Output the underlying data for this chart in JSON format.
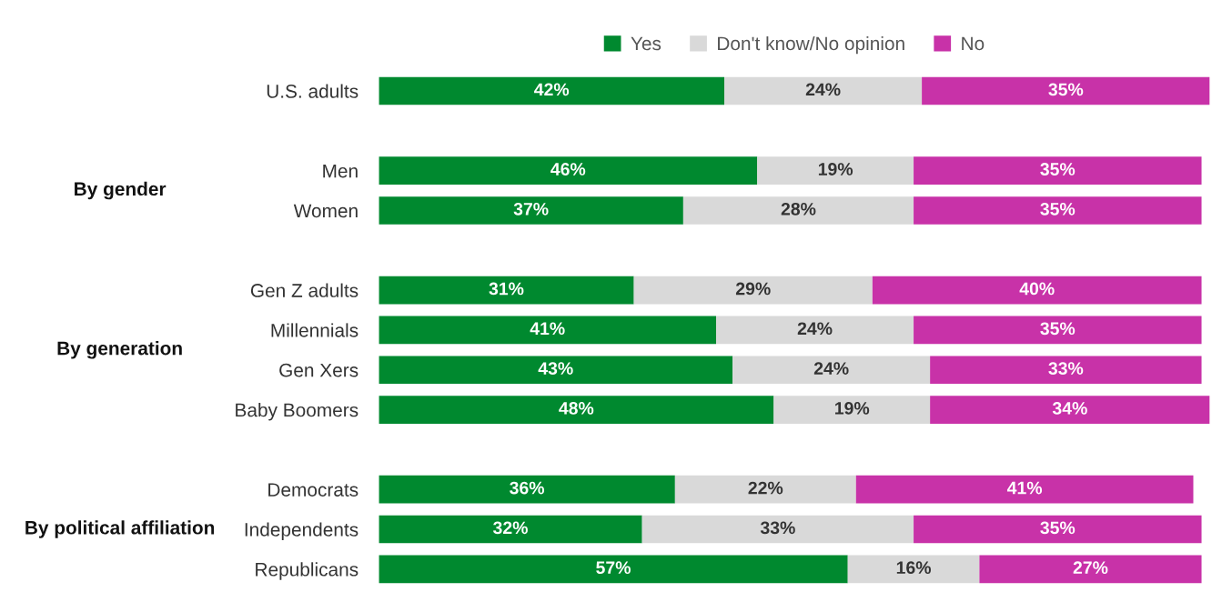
{
  "chart_data": {
    "type": "bar",
    "orientation": "horizontal",
    "stacked": true,
    "legend": "top",
    "categories": [
      "U.S. adults",
      null,
      "Men",
      "Women",
      null,
      "Gen Z adults",
      "Millennials",
      "Gen Xers",
      "Baby Boomers",
      null,
      "Democrats",
      "Independents",
      "Republicans"
    ],
    "series": [
      {
        "name": "Yes",
        "color": "#00892f",
        "values": [
          42,
          null,
          46,
          37,
          null,
          31,
          41,
          43,
          48,
          null,
          36,
          32,
          57
        ],
        "value_labels": [
          "42%",
          null,
          "46%",
          "37%",
          null,
          "31%",
          "41%",
          "43%",
          "48%",
          null,
          "36%",
          "32%",
          "57%"
        ]
      },
      {
        "name": "Don't know/No opinion",
        "color": "#d9d9d9",
        "values": [
          24,
          null,
          19,
          28,
          null,
          29,
          24,
          24,
          19,
          null,
          22,
          33,
          16
        ],
        "value_labels": [
          "24%",
          null,
          "19%",
          "28%",
          null,
          "29%",
          "24%",
          "24%",
          "19%",
          null,
          "22%",
          "33%",
          "16%"
        ]
      },
      {
        "name": "No",
        "color": "#c832a8",
        "values": [
          35,
          null,
          35,
          35,
          null,
          40,
          35,
          33,
          34,
          null,
          41,
          35,
          27
        ],
        "value_labels": [
          "35%",
          null,
          "35%",
          "35%",
          null,
          "40%",
          "35%",
          "33%",
          "34%",
          null,
          "41%",
          "35%",
          "27%"
        ]
      }
    ],
    "annotations": [
      "By gender",
      "By generation",
      "By political affiliation"
    ]
  }
}
